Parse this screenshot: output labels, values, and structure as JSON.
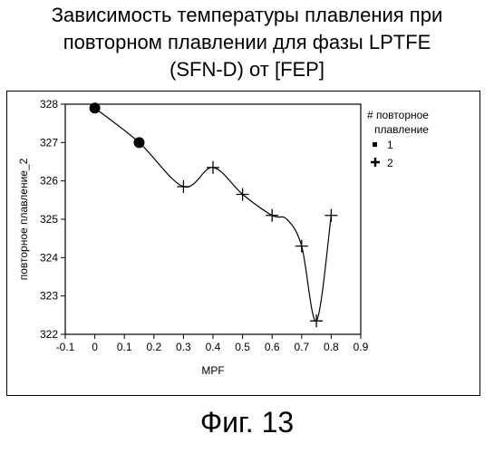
{
  "title_lines": [
    "Зависимость температуры плавления при",
    "повторном плавлении для фазы LPTFE",
    "(SFN-D) от [FEP]"
  ],
  "figure_caption": "Фиг. 13",
  "chart_data": {
    "type": "scatter",
    "title": "Зависимость температуры плавления при повторном плавлении для фазы LPTFE (SFN-D) от [FEP]",
    "xlabel": "MPF",
    "ylabel": "повторное плавление_2",
    "xlim": [
      -0.1,
      0.9
    ],
    "ylim": [
      322,
      328
    ],
    "x_ticks": [
      "-0.1",
      "0",
      "0.1",
      "0.2",
      "0.3",
      "0.4",
      "0.5",
      "0.6",
      "0.7",
      "0.8",
      "0.9"
    ],
    "y_ticks": [
      "322",
      "323",
      "324",
      "325",
      "326",
      "327",
      "328"
    ],
    "grid": false,
    "legend": {
      "title_lines": [
        "# повторное",
        "плавление"
      ],
      "position": "right",
      "entries": [
        "1",
        "2"
      ]
    },
    "series": [
      {
        "name": "1",
        "marker": "circle",
        "x": [
          0.0,
          0.15
        ],
        "y": [
          327.9,
          327.0
        ]
      },
      {
        "name": "2",
        "marker": "plus",
        "x": [
          0.3,
          0.4,
          0.5,
          0.6,
          0.7,
          0.75,
          0.8
        ],
        "y": [
          325.85,
          326.35,
          325.65,
          325.1,
          324.3,
          322.35,
          325.1
        ]
      }
    ],
    "fit_curve": {
      "x": [
        0.0,
        0.15,
        0.3,
        0.4,
        0.5,
        0.6,
        0.65,
        0.7,
        0.75,
        0.8
      ],
      "y": [
        327.9,
        327.0,
        325.85,
        326.35,
        325.65,
        325.1,
        325.0,
        324.3,
        322.35,
        325.1
      ]
    }
  }
}
